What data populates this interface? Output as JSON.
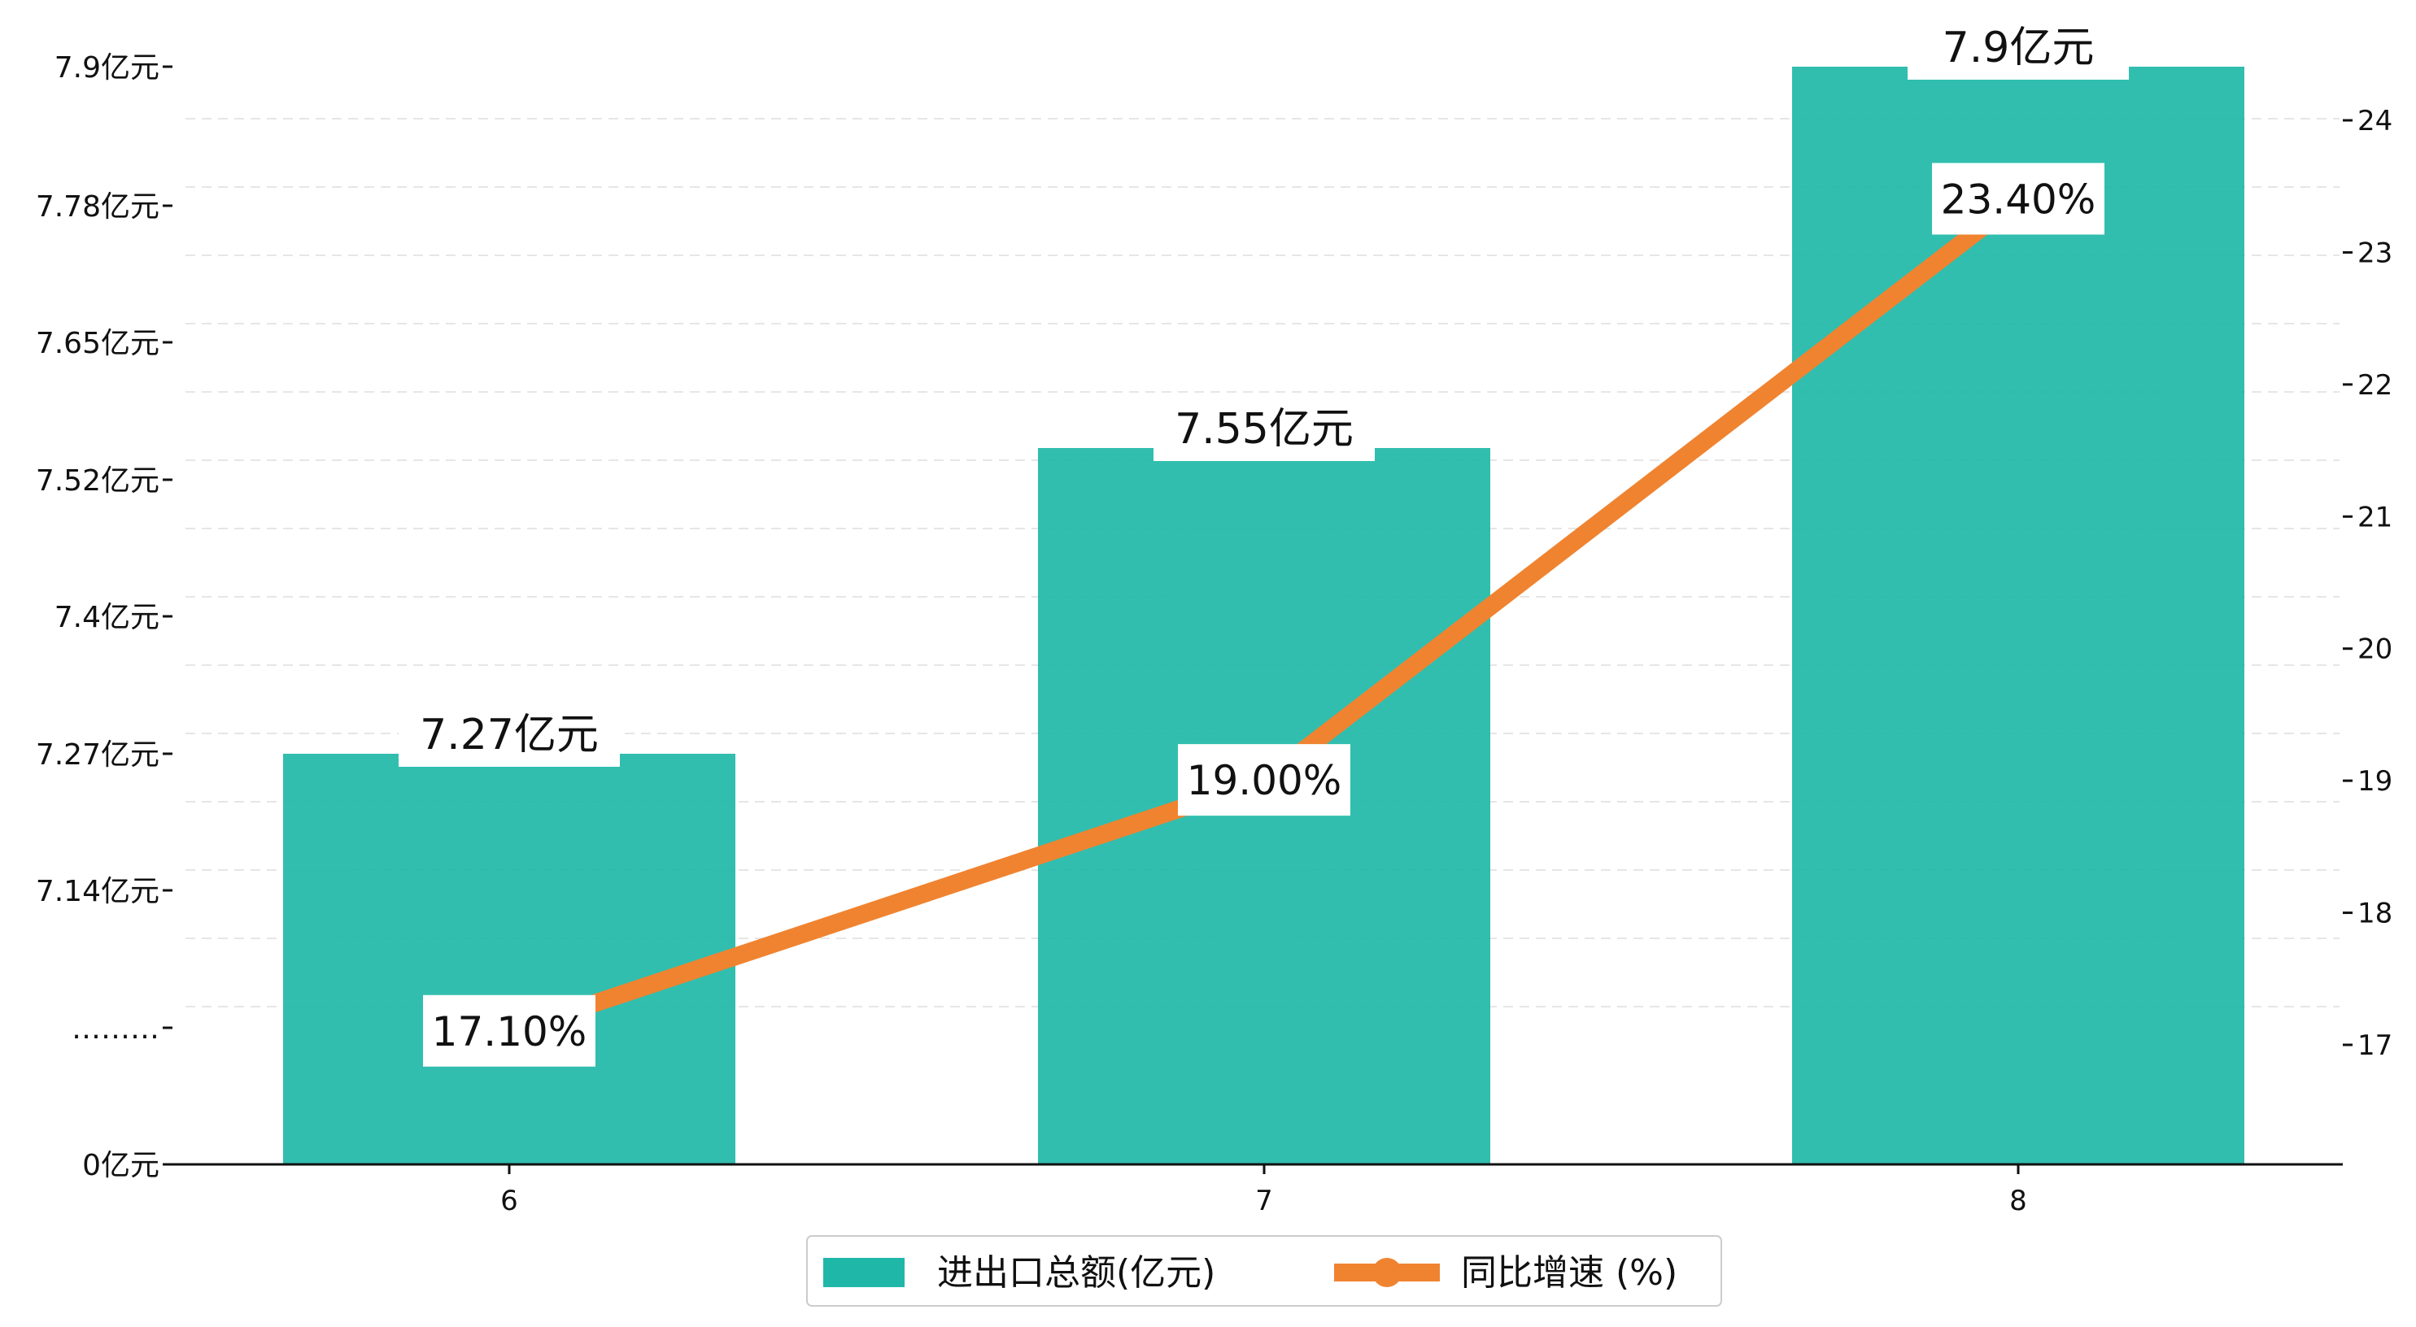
{
  "chart_data": {
    "type": "bar",
    "categories": [
      "6",
      "7",
      "8"
    ],
    "series": [
      {
        "name": "进出口总额(亿元)",
        "type": "bar",
        "axis": "left",
        "color": "#1fb8a8",
        "values": [
          7.27,
          7.55,
          7.9
        ],
        "labels": [
          "7.27亿元",
          "7.55亿元",
          "7.9亿元"
        ]
      },
      {
        "name": "同比增速 (%)",
        "type": "line",
        "axis": "right",
        "color": "#f08330",
        "values": [
          17.1,
          19.0,
          23.4
        ],
        "labels": [
          "17.10%",
          "19.00%",
          "23.40%"
        ]
      }
    ],
    "y_left": {
      "ticks": [
        {
          "value": 0,
          "label": "0亿元"
        },
        {
          "value": 7.01,
          "label": "………"
        },
        {
          "value": 7.14,
          "label": "7.14亿元"
        },
        {
          "value": 7.27,
          "label": "7.27亿元"
        },
        {
          "value": 7.4,
          "label": "7.4亿元"
        },
        {
          "value": 7.52,
          "label": "7.52亿元"
        },
        {
          "value": 7.65,
          "label": "7.65亿元"
        },
        {
          "value": 7.78,
          "label": "7.78亿元"
        },
        {
          "value": 7.9,
          "label": "7.9亿元"
        }
      ],
      "break": true
    },
    "y_right": {
      "ticks": [
        17,
        18,
        19,
        20,
        21,
        22,
        23,
        24
      ],
      "range": [
        16.1,
        24.9
      ]
    },
    "grid": "horizontal dashed",
    "legend_position": "bottom-center"
  }
}
